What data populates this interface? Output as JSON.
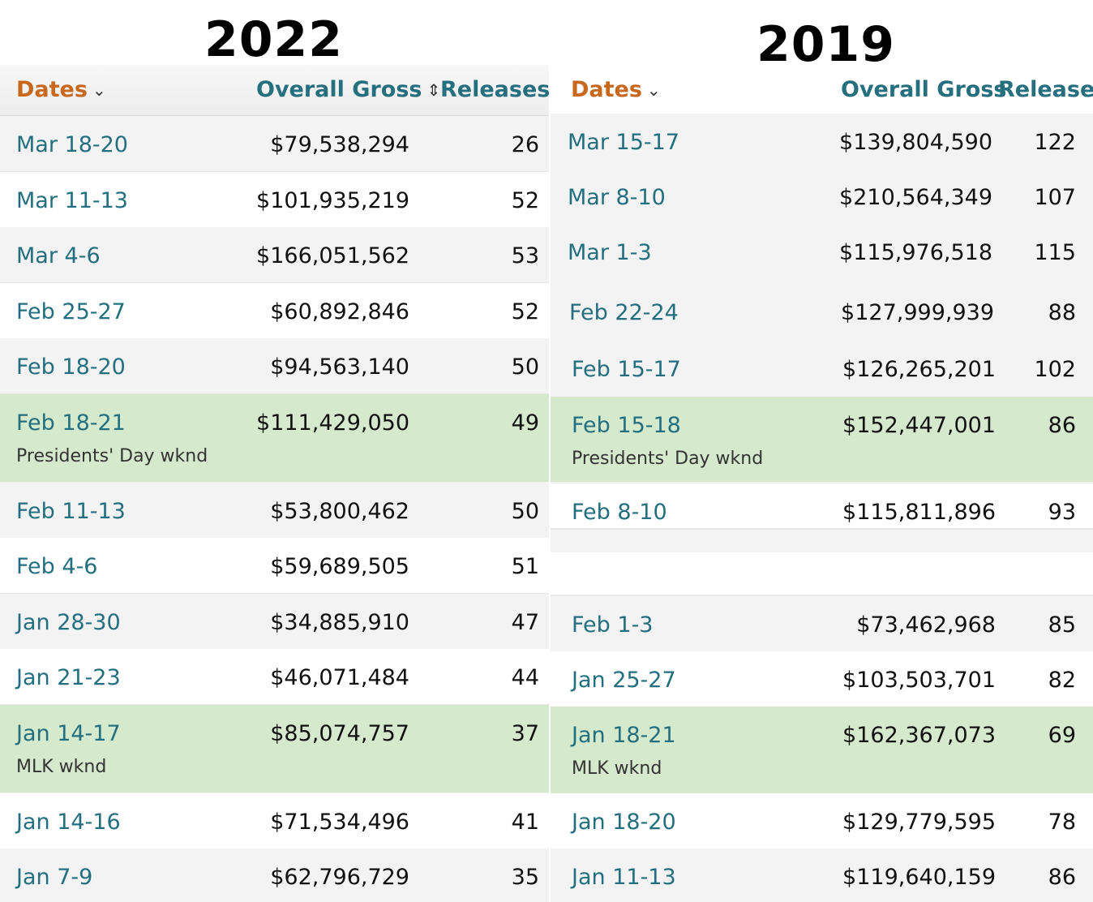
{
  "left": {
    "year": "2022",
    "header": {
      "dates": "Dates",
      "gross": "Overall Gross",
      "releases": "Releases"
    },
    "rows": [
      {
        "date": "Mar 18-20",
        "gross": "$79,538,294",
        "releases": "26"
      },
      {
        "date": "Mar 11-13",
        "gross": "$101,935,219",
        "releases": "52"
      },
      {
        "date": "Mar 4-6",
        "gross": "$166,051,562",
        "releases": "53"
      },
      {
        "date": "Feb 25-27",
        "gross": "$60,892,846",
        "releases": "52"
      },
      {
        "date": "Feb 18-20",
        "gross": "$94,563,140",
        "releases": "50"
      },
      {
        "date": "Feb 18-21",
        "gross": "$111,429,050",
        "releases": "49",
        "note": "Presidents' Day wknd",
        "highlight": true
      },
      {
        "date": "Feb 11-13",
        "gross": "$53,800,462",
        "releases": "50"
      },
      {
        "date": "Feb 4-6",
        "gross": "$59,689,505",
        "releases": "51"
      },
      {
        "date": "Jan 28-30",
        "gross": "$34,885,910",
        "releases": "47"
      },
      {
        "date": "Jan 21-23",
        "gross": "$46,071,484",
        "releases": "44"
      },
      {
        "date": "Jan 14-17",
        "gross": "$85,074,757",
        "releases": "37",
        "note": "MLK wknd",
        "highlight": true
      },
      {
        "date": "Jan 14-16",
        "gross": "$71,534,496",
        "releases": "41"
      },
      {
        "date": "Jan 7-9",
        "gross": "$62,796,729",
        "releases": "35"
      }
    ]
  },
  "right": {
    "year": "2019",
    "header": {
      "dates": "Dates",
      "gross": "Overall Gross",
      "releases": "Releases"
    },
    "rows": [
      {
        "date": "Mar 15-17",
        "gross": "$139,804,590",
        "releases": "122"
      },
      {
        "date": "Mar 8-10",
        "gross": "$210,564,349",
        "releases": "107"
      },
      {
        "date": "Mar 1-3",
        "gross": "$115,976,518",
        "releases": "115"
      },
      {
        "date": "Feb 22-24",
        "gross": "$127,999,939",
        "releases": "88"
      },
      {
        "date": "Feb 15-17",
        "gross": "$126,265,201",
        "releases": "102"
      },
      {
        "date": "Feb 15-18",
        "gross": "$152,447,001",
        "releases": "86",
        "note": "Presidents' Day wknd",
        "highlight": true
      },
      {
        "date": "Feb 8-10",
        "gross": "$115,811,896",
        "releases": "93"
      },
      {
        "date": "Feb 1-3",
        "gross": "$73,462,968",
        "releases": "85"
      },
      {
        "date": "Jan 25-27",
        "gross": "$103,503,701",
        "releases": "82"
      },
      {
        "date": "Jan 18-21",
        "gross": "$162,367,073",
        "releases": "69",
        "note": "MLK wknd",
        "highlight": true
      },
      {
        "date": "Jan 18-20",
        "gross": "$129,779,595",
        "releases": "78"
      },
      {
        "date": "Jan 11-13",
        "gross": "$119,640,159",
        "releases": "86"
      }
    ]
  }
}
